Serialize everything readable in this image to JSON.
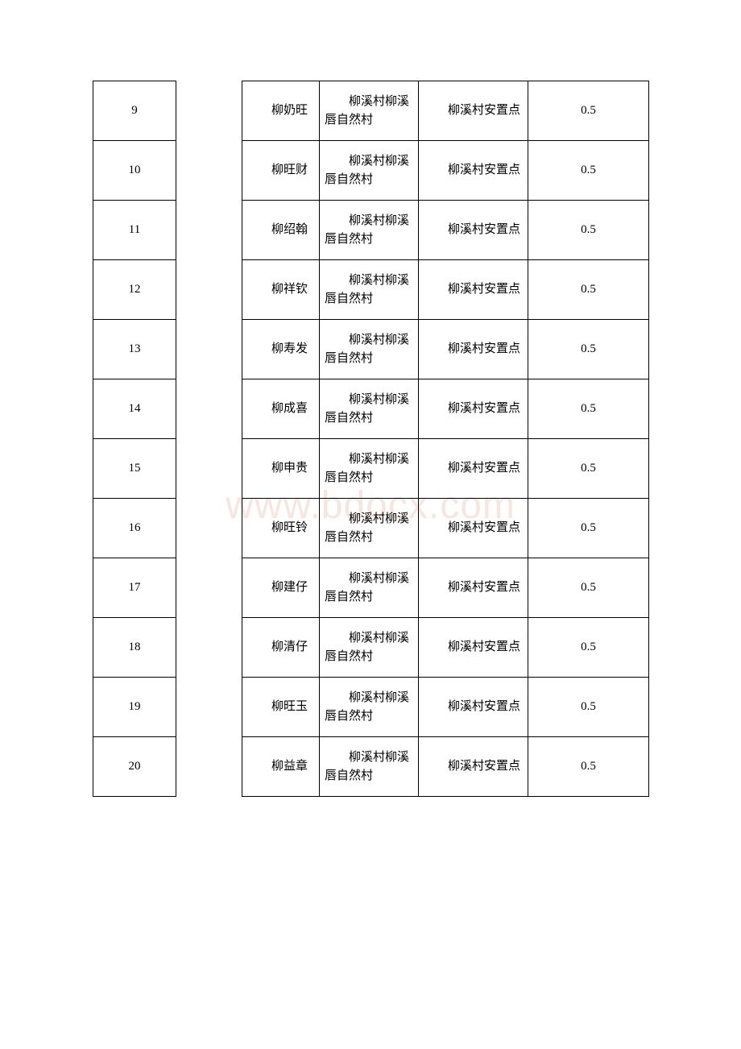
{
  "watermark": "www.bdocx.com",
  "table": {
    "columns": {
      "idx_width": 103,
      "blank_width": 82,
      "name_width": 96,
      "origin_width": 123,
      "dest_width": 136,
      "val_width": 150
    },
    "styling": {
      "border_color": "#000000",
      "text_color": "#000000",
      "font_size": 15,
      "background_color": "#ffffff",
      "watermark_color": "#f2d6c9"
    },
    "rows": [
      {
        "idx": "9",
        "name": "柳奶旺",
        "origin": "柳溪村柳溪唇自然村",
        "dest": "柳溪村安置点",
        "val": "0.5"
      },
      {
        "idx": "10",
        "name": "柳旺财",
        "origin": "柳溪村柳溪唇自然村",
        "dest": "柳溪村安置点",
        "val": "0.5"
      },
      {
        "idx": "11",
        "name": "柳绍翰",
        "origin": "柳溪村柳溪唇自然村",
        "dest": "柳溪村安置点",
        "val": "0.5"
      },
      {
        "idx": "12",
        "name": "柳祥钦",
        "origin": "柳溪村柳溪唇自然村",
        "dest": "柳溪村安置点",
        "val": "0.5"
      },
      {
        "idx": "13",
        "name": "柳寿发",
        "origin": "柳溪村柳溪唇自然村",
        "dest": "柳溪村安置点",
        "val": "0.5"
      },
      {
        "idx": "14",
        "name": "柳成喜",
        "origin": "柳溪村柳溪唇自然村",
        "dest": "柳溪村安置点",
        "val": "0.5"
      },
      {
        "idx": "15",
        "name": "柳申贵",
        "origin": "柳溪村柳溪唇自然村",
        "dest": "柳溪村安置点",
        "val": "0.5"
      },
      {
        "idx": "16",
        "name": "柳旺铃",
        "origin": "柳溪村柳溪唇自然村",
        "dest": "柳溪村安置点",
        "val": "0.5"
      },
      {
        "idx": "17",
        "name": "柳建仔",
        "origin": "柳溪村柳溪唇自然村",
        "dest": "柳溪村安置点",
        "val": "0.5"
      },
      {
        "idx": "18",
        "name": "柳清仔",
        "origin": "柳溪村柳溪唇自然村",
        "dest": "柳溪村安置点",
        "val": "0.5"
      },
      {
        "idx": "19",
        "name": "柳旺玉",
        "origin": "柳溪村柳溪唇自然村",
        "dest": "柳溪村安置点",
        "val": "0.5"
      },
      {
        "idx": "20",
        "name": "柳益章",
        "origin": "柳溪村柳溪唇自然村",
        "dest": "柳溪村安置点",
        "val": "0.5"
      }
    ]
  }
}
